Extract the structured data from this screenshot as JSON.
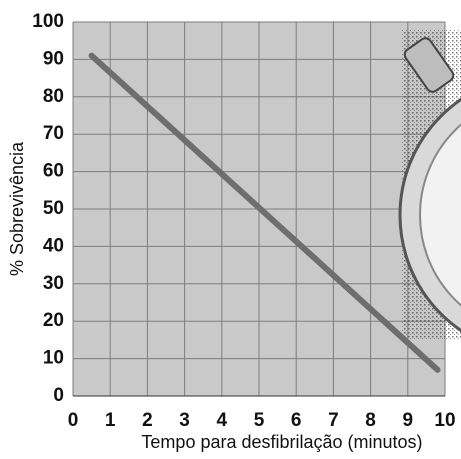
{
  "chart_data": {
    "type": "line",
    "xlabel": "Tempo para desfibrilação (minutos)",
    "ylabel": "% Sobrevivência",
    "x": [
      0.5,
      9.8
    ],
    "series": [
      {
        "color": "#6e6e6e",
        "values": [
          91,
          7
        ]
      }
    ],
    "xlim": [
      0,
      10
    ],
    "xticks": [
      0,
      1,
      2,
      3,
      4,
      5,
      6,
      7,
      8,
      9,
      10
    ],
    "ylim": [
      0,
      100
    ],
    "yticks": [
      0,
      10,
      20,
      30,
      40,
      50,
      60,
      70,
      80,
      90,
      100
    ],
    "grid": true
  }
}
